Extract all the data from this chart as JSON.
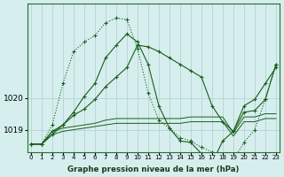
{
  "xlabel": "Graphe pression niveau de la mer (hPa)",
  "ylabel": "",
  "background_color": "#d6eeee",
  "grid_color": "#b8d8d8",
  "line_color": "#1a5e1a",
  "hours": [
    0,
    1,
    2,
    3,
    4,
    5,
    6,
    7,
    8,
    9,
    10,
    11,
    12,
    13,
    14,
    15,
    16,
    17,
    18,
    19,
    20,
    21,
    22,
    23
  ],
  "series_dotted": [
    1018.55,
    1018.55,
    1019.15,
    1020.45,
    1021.45,
    1021.75,
    1021.95,
    1022.35,
    1022.5,
    1022.45,
    1021.55,
    1020.15,
    1019.3,
    1019.05,
    1018.75,
    1018.65,
    1018.45,
    1018.3,
    1018.2,
    1018.05,
    1018.6,
    1019.0,
    1019.95,
    1021.05
  ],
  "series_solid1": [
    1018.55,
    1018.55,
    1018.85,
    1019.15,
    1019.55,
    1020.05,
    1020.45,
    1021.25,
    1021.65,
    1022.0,
    1021.75,
    1021.05,
    1019.75,
    1019.05,
    1018.65,
    1018.6,
    1018.25,
    1017.95,
    1018.65,
    1018.95,
    1019.75,
    1019.95,
    1020.45,
    1020.95
  ],
  "series_solid2": [
    1018.55,
    1018.55,
    1018.95,
    1019.15,
    1019.45,
    1019.65,
    1019.95,
    1020.35,
    1020.65,
    1020.95,
    1021.65,
    1021.6,
    1021.45,
    1021.25,
    1021.05,
    1020.85,
    1020.65,
    1019.75,
    1019.25,
    1018.95,
    1019.55,
    1019.6,
    1019.95,
    1021.05
  ],
  "series_flat": [
    1018.55,
    1018.55,
    1018.95,
    1019.05,
    1019.1,
    1019.15,
    1019.2,
    1019.3,
    1019.35,
    1019.35,
    1019.35,
    1019.35,
    1019.35,
    1019.35,
    1019.35,
    1019.4,
    1019.4,
    1019.4,
    1019.4,
    1018.9,
    1019.4,
    1019.4,
    1019.5,
    1019.5
  ],
  "series_flat2": [
    1018.55,
    1018.55,
    1018.85,
    1018.95,
    1019.0,
    1019.05,
    1019.1,
    1019.15,
    1019.2,
    1019.2,
    1019.2,
    1019.2,
    1019.2,
    1019.2,
    1019.2,
    1019.25,
    1019.25,
    1019.25,
    1019.25,
    1018.8,
    1019.25,
    1019.25,
    1019.35,
    1019.35
  ],
  "yticks": [
    1019,
    1020
  ],
  "ylim": [
    1018.3,
    1022.95
  ],
  "xlim": [
    -0.3,
    23.3
  ]
}
